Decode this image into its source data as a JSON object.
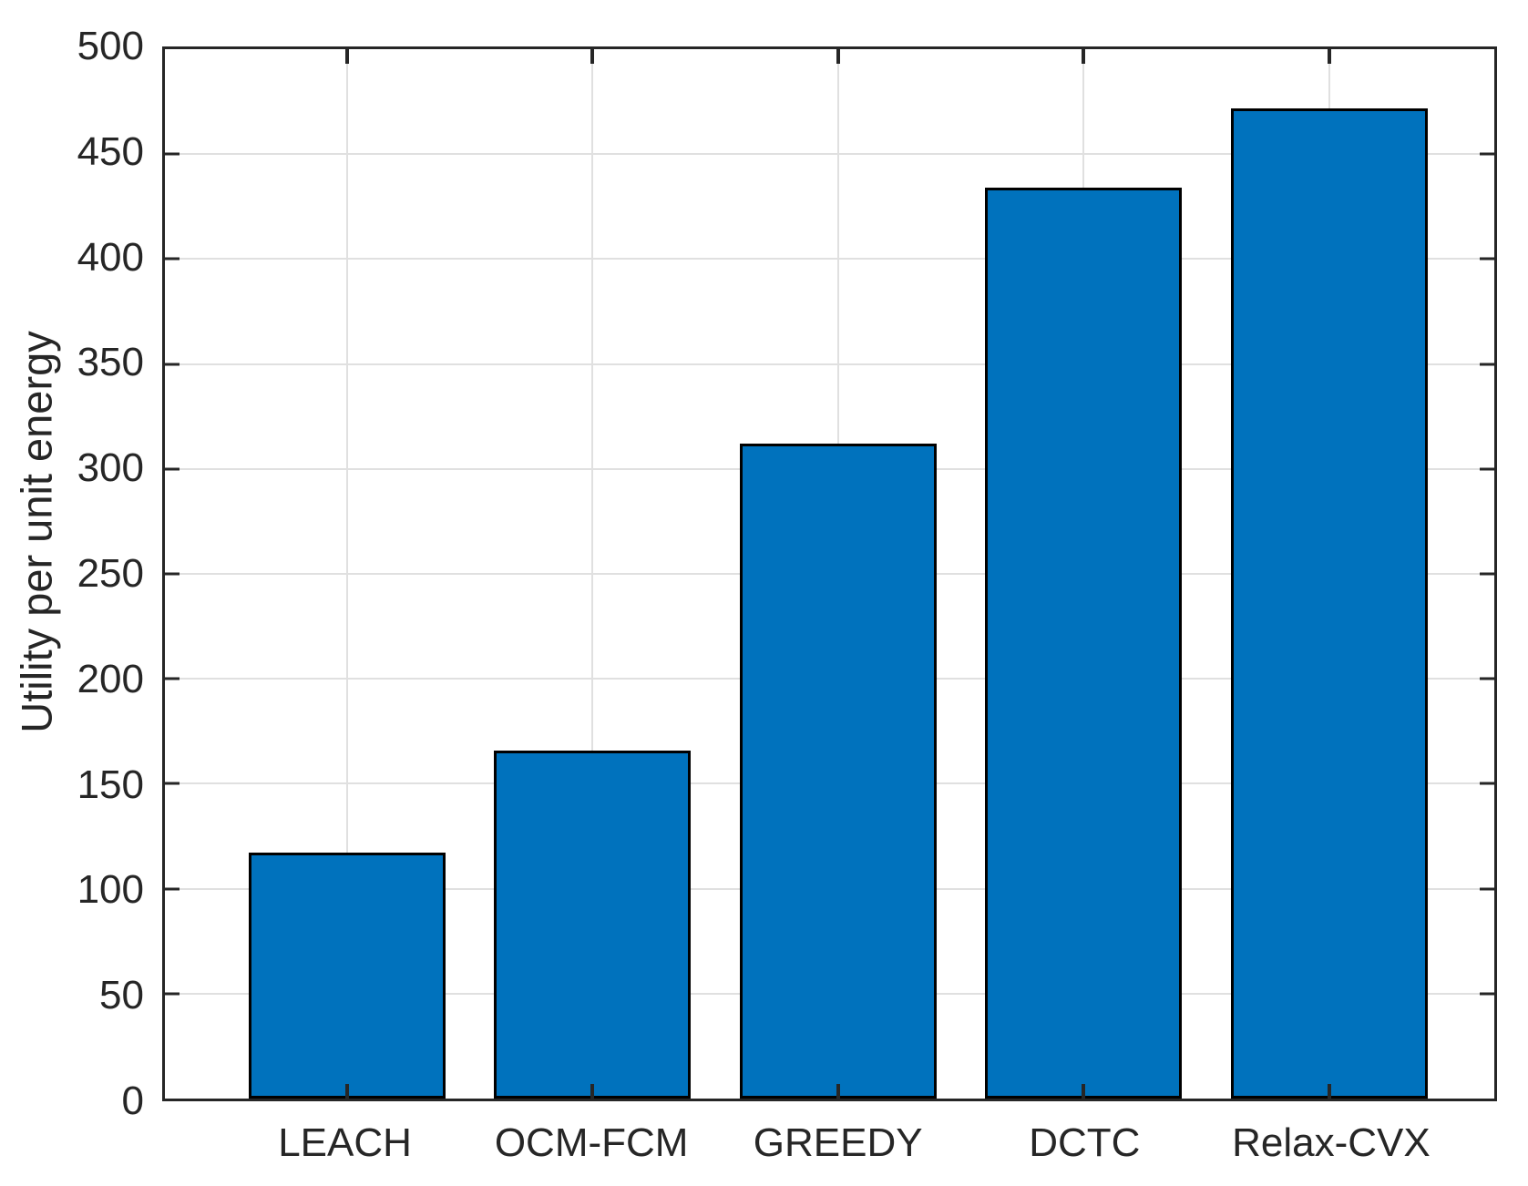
{
  "chart_data": {
    "type": "bar",
    "categories": [
      "LEACH",
      "OCM-FCM",
      "GREEDY",
      "DCTC",
      "Relax-CVX"
    ],
    "values": [
      117,
      166,
      312,
      434,
      472
    ],
    "title": "",
    "xlabel": "",
    "ylabel": "Utility per unit energy",
    "ylim": [
      0,
      500
    ],
    "ytick_step": 50,
    "yticks": [
      0,
      50,
      100,
      150,
      200,
      250,
      300,
      350,
      400,
      450,
      500
    ],
    "grid": "on",
    "legend_position": "none",
    "series_count": 1,
    "colors": {
      "bar_fill": "#0072BD",
      "bar_edge": "#000000",
      "axis_box": "#262626",
      "grid_line": "#E0E0E0",
      "tick_mark": "#262626",
      "tick_label": "#262626",
      "background": "#FFFFFF"
    }
  }
}
